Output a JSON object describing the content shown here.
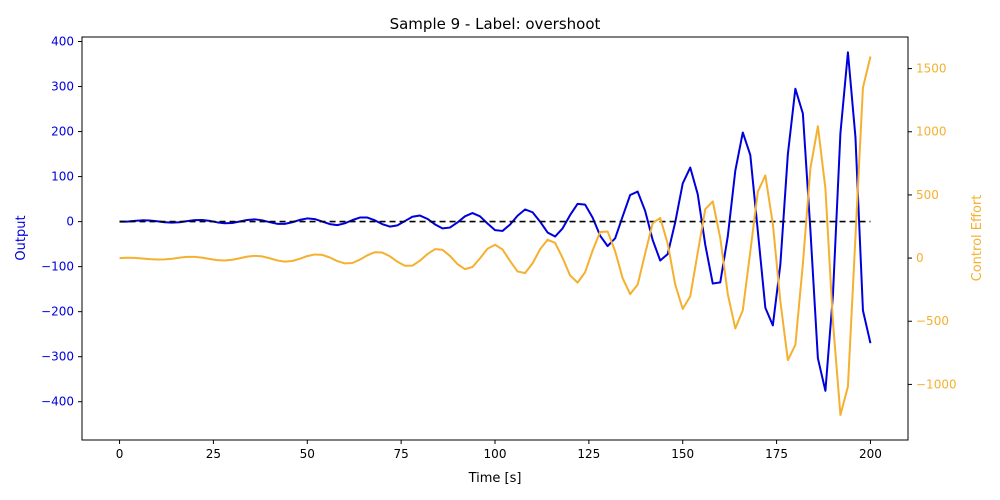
{
  "chart_data": {
    "type": "line",
    "title": "Sample 9 - Label: overshoot",
    "xlabel": "Time [s]",
    "ylabel_left": "Output",
    "ylabel_right": "Control Effort",
    "xlim": [
      -10,
      210
    ],
    "ylim_left": [
      -485,
      410
    ],
    "ylim_right": [
      -1440,
      1750
    ],
    "xticks": [
      0,
      25,
      50,
      75,
      100,
      125,
      150,
      175,
      200
    ],
    "yticks_left": [
      -400,
      -300,
      -200,
      -100,
      0,
      100,
      200,
      300,
      400
    ],
    "yticks_right": [
      -1000,
      -500,
      0,
      500,
      1000,
      1500
    ],
    "grid": false,
    "series": [
      {
        "axis": "left",
        "color": "#0000dd",
        "style": "solid",
        "x": [
          0,
          2,
          4,
          6,
          8,
          10,
          12,
          14,
          16,
          18,
          20,
          22,
          24,
          26,
          28,
          30,
          32,
          34,
          36,
          38,
          40,
          42,
          44,
          46,
          48,
          50,
          52,
          54,
          56,
          58,
          60,
          62,
          64,
          66,
          68,
          70,
          72,
          74,
          76,
          78,
          80,
          82,
          84,
          86,
          88,
          90,
          92,
          94,
          96,
          98,
          100,
          102,
          104,
          106,
          108,
          110,
          112,
          114,
          116,
          118,
          120,
          122,
          124,
          126,
          128,
          130,
          132,
          134,
          136,
          138,
          140,
          142,
          144,
          146,
          148,
          150,
          152,
          154,
          156,
          158,
          160,
          162,
          164,
          166,
          168,
          170,
          172,
          174,
          176,
          178,
          180,
          182,
          184,
          186,
          188,
          190,
          192,
          194,
          196,
          198,
          200
        ],
        "y": [
          0.0,
          0.0,
          1.6,
          2.9,
          2.6,
          0.8,
          -1.3,
          -2.3,
          -1.3,
          1.0,
          3.2,
          3.6,
          1.6,
          -1.6,
          -3.6,
          -3.0,
          0.2,
          3.7,
          5.1,
          2.9,
          -1.3,
          -4.9,
          -5.1,
          -1.4,
          3.8,
          7.1,
          5.6,
          0.2,
          -5.5,
          -7.8,
          -3.8,
          3.3,
          9.1,
          9.0,
          2.8,
          -5.6,
          -11.1,
          -8.4,
          1.2,
          10.8,
          13.5,
          6.1,
          -6.0,
          -15.0,
          -13.2,
          -1.9,
          11.8,
          19.0,
          11.8,
          -4.2,
          -18.8,
          -20.7,
          -6.6,
          13.1,
          27.0,
          20.8,
          0.0,
          -24.1,
          -33.1,
          -15.1,
          14.5,
          39.5,
          37.6,
          8.9,
          -31.2,
          -54.4,
          -37.1,
          11.4,
          59.1,
          66.7,
          23.7,
          -40.9,
          -86.3,
          -72.1,
          -1.5,
          84.9,
          120.1,
          60.6,
          -51.2,
          -137.6,
          -134.9,
          -32.7,
          112.8,
          198.0,
          147.7,
          -21.1,
          -191.2,
          -230.5,
          -95.3,
          149.6,
          295.1,
          240.0,
          -18.3,
          -303.6,
          -375.8,
          -163.9,
          196.4,
          376.0,
          187.8,
          -197.4,
          -270.0
        ]
      },
      {
        "axis": "left",
        "color": "#000000",
        "style": "dashed",
        "x": [
          0,
          200
        ],
        "y": [
          0,
          0
        ]
      },
      {
        "axis": "right",
        "color": "#f5b030",
        "style": "solid",
        "x": [
          0,
          2,
          4,
          6,
          8,
          10,
          12,
          14,
          16,
          18,
          20,
          22,
          24,
          26,
          28,
          30,
          32,
          34,
          36,
          38,
          40,
          42,
          44,
          46,
          48,
          50,
          52,
          54,
          56,
          58,
          60,
          62,
          64,
          66,
          68,
          70,
          72,
          74,
          76,
          78,
          80,
          82,
          84,
          86,
          88,
          90,
          92,
          94,
          96,
          98,
          100,
          102,
          104,
          106,
          108,
          110,
          112,
          114,
          116,
          118,
          120,
          122,
          124,
          126,
          128,
          130,
          132,
          134,
          136,
          138,
          140,
          142,
          144,
          146,
          148,
          150,
          152,
          154,
          156,
          158,
          160,
          162,
          164,
          166,
          168,
          170,
          172,
          174,
          176,
          178,
          180,
          182,
          184,
          186,
          188,
          190,
          192,
          194,
          196,
          198,
          200
        ],
        "y": [
          0.0,
          2.3,
          1.3,
          -3.1,
          -8.6,
          -11.7,
          -10.7,
          -5.0,
          3.2,
          9.3,
          9.5,
          3.3,
          -7.1,
          -16.3,
          -19.1,
          -13.2,
          -1.0,
          11.7,
          18.0,
          13.2,
          -1.2,
          -18.7,
          -28.3,
          -23.1,
          -5.6,
          15.6,
          28.7,
          25.2,
          4.6,
          -23.6,
          -42.3,
          -38.8,
          -12.7,
          22.2,
          46.3,
          43.6,
          14.3,
          -28.7,
          -60.5,
          -59.6,
          -20.7,
          31.7,
          70.5,
          66.3,
          17.1,
          -47.7,
          -87.2,
          -70.7,
          -2.3,
          74.0,
          105.5,
          68.3,
          -22.7,
          -105.6,
          -118.8,
          -41.7,
          69.4,
          144.8,
          120.8,
          1.5,
          -137.3,
          -194.2,
          -112.0,
          59.8,
          206.6,
          210.0,
          54.1,
          -159.2,
          -285.4,
          -210.4,
          36.9,
          276.6,
          318.0,
          114.6,
          -209.8,
          -403.1,
          -302.4,
          44.2,
          386.6,
          448.8,
          158.0,
          -284.7,
          -557.0,
          -412.8,
          52.2,
          525.5,
          654.4,
          270.6,
          -342.0,
          -807.9,
          -687.8,
          -46.0,
          708.4,
          1044.0,
          551.9,
          -502.1,
          -1241.7,
          -1017.0,
          167.0,
          1349.5,
          1596.0
        ]
      }
    ]
  }
}
